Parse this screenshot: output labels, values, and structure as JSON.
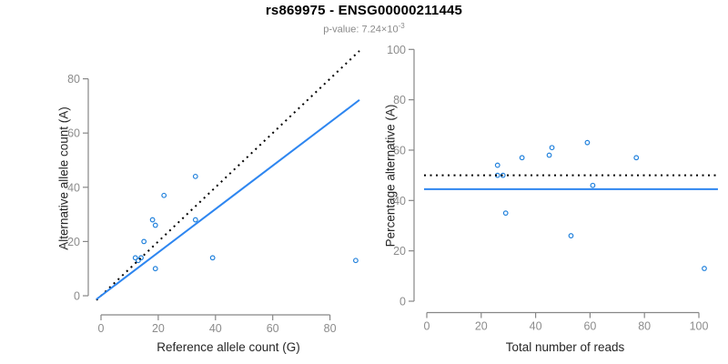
{
  "header": {
    "title": "rs869975 - ENSG00000211445",
    "pvalue_label": "p-value:",
    "pvalue_text": "p-value: 7.24×10",
    "pvalue_exponent": "-3"
  },
  "colors": {
    "point_blue": "#2181DC",
    "line_blue": "#2E86F0",
    "identity_black": "#000000",
    "axis_gray": "#878787",
    "tick_label_gray": "#8c8c8c",
    "axis_title_dark": "#262626",
    "title_black": "#000000",
    "subtitle_gray": "#8a8a8a"
  },
  "chart_data": [
    {
      "type": "scatter",
      "name": "allele-counts-scatter",
      "xlabel": "Reference allele count (G)",
      "ylabel": "Alternative allele count (A)",
      "xticks": [
        0,
        20,
        40,
        60,
        80
      ],
      "yticks": [
        0,
        20,
        40,
        60,
        80
      ],
      "xlim": [
        -1.6,
        90.5
      ],
      "ylim": [
        -1.6,
        92
      ],
      "grid": false,
      "point_color": "#2181DC",
      "points": [
        [
          12,
          14
        ],
        [
          13,
          13
        ],
        [
          14,
          14
        ],
        [
          15,
          20
        ],
        [
          18,
          28
        ],
        [
          19,
          26
        ],
        [
          19,
          10
        ],
        [
          22,
          37
        ],
        [
          33,
          28
        ],
        [
          33,
          44
        ],
        [
          39,
          14
        ],
        [
          89,
          13
        ]
      ],
      "lines": [
        {
          "name": "identity-line",
          "style": "dotted",
          "color": "#000000",
          "x1": -1.6,
          "y1": -1.6,
          "x2": 90.3,
          "y2": 90.3
        },
        {
          "name": "regression-line",
          "style": "solid",
          "color": "#2E86F0",
          "x1": -1.6,
          "y1": -1.3,
          "x2": 90.3,
          "y2": 72.2
        }
      ]
    },
    {
      "type": "scatter",
      "name": "percentage-vs-coverage-scatter",
      "xlabel": "Total number of reads",
      "ylabel": "Percentage alternative (A)",
      "xticks": [
        0,
        20,
        40,
        60,
        80,
        100
      ],
      "yticks": [
        0,
        20,
        40,
        60,
        80,
        100
      ],
      "xlim": [
        -1,
        107
      ],
      "ylim": [
        0,
        100
      ],
      "grid": false,
      "point_color": "#2181DC",
      "points": [
        [
          26,
          54
        ],
        [
          26,
          50
        ],
        [
          28,
          50
        ],
        [
          29,
          35
        ],
        [
          35,
          57
        ],
        [
          45,
          58
        ],
        [
          46,
          61
        ],
        [
          53,
          26
        ],
        [
          59,
          63
        ],
        [
          61,
          46
        ],
        [
          77,
          57
        ],
        [
          102,
          13
        ]
      ],
      "lines": [
        {
          "name": "fifty-percent-line",
          "style": "dotted",
          "color": "#000000",
          "x1": -1,
          "y1": 50,
          "x2": 107,
          "y2": 50
        },
        {
          "name": "mean-percentage-line",
          "style": "solid",
          "color": "#2E86F0",
          "x1": -1,
          "y1": 44.5,
          "x2": 107,
          "y2": 44.5
        }
      ]
    }
  ]
}
